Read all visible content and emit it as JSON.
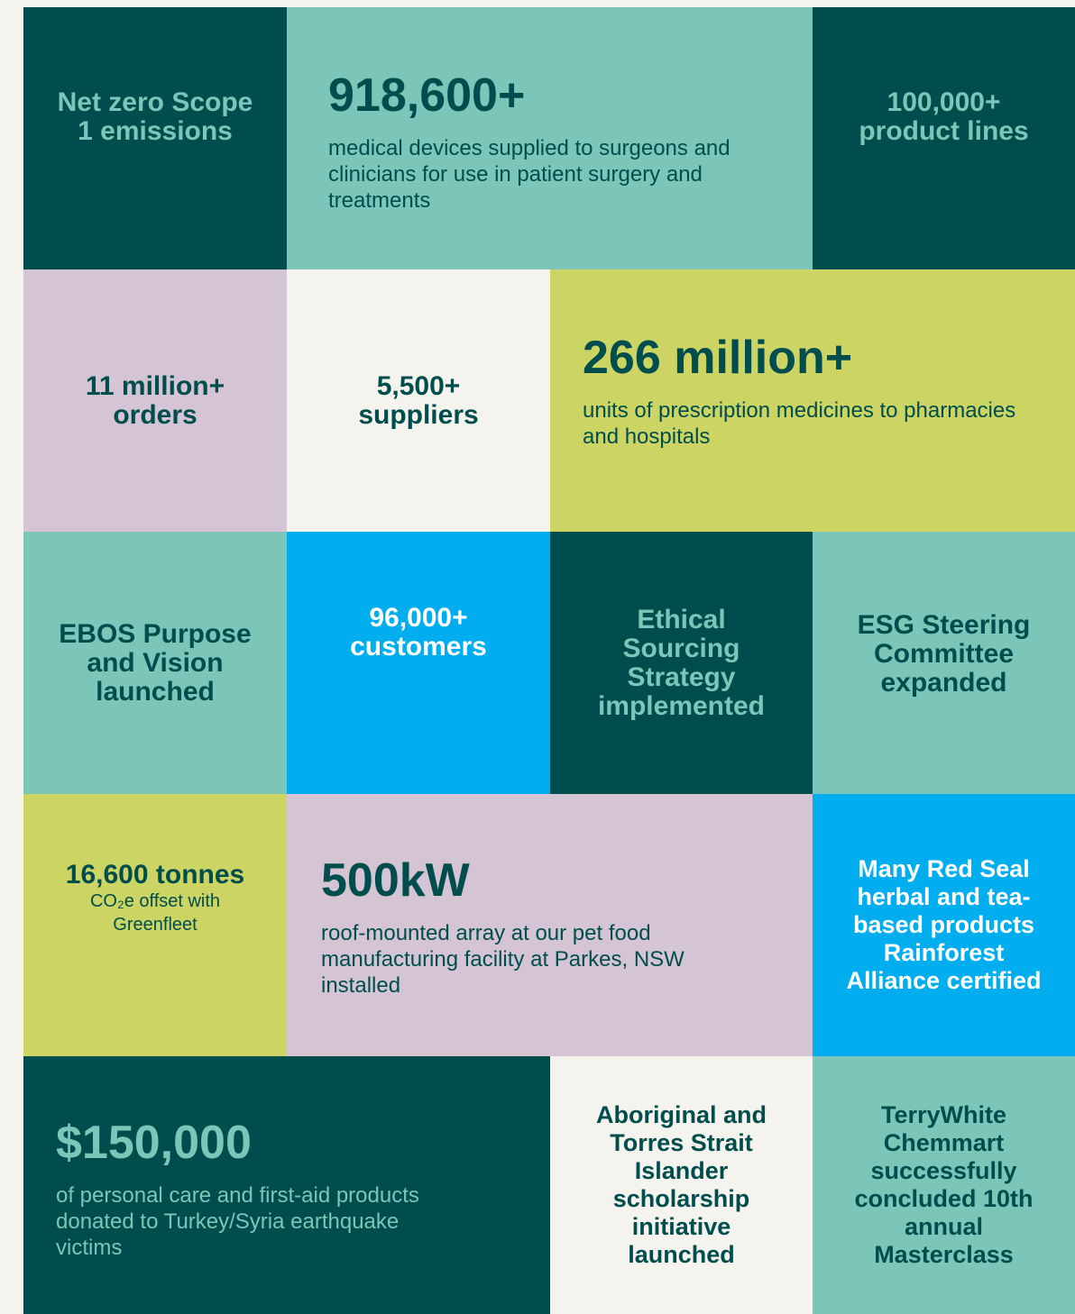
{
  "cells": [
    {
      "heading": "Net zero Scope 1 emissions"
    },
    {
      "heading": "918,600+",
      "description": "medical devices supplied to surgeons and clinicians for use in patient surgery and treatments"
    },
    {
      "heading": "100,000+ product lines"
    },
    {
      "heading": "11 million+ orders"
    },
    {
      "heading": "5,500+ suppliers"
    },
    {
      "heading": "266 million+",
      "description": "units of prescription medicines to pharmacies and hospitals"
    },
    {
      "heading": "EBOS Purpose and Vision launched"
    },
    {
      "heading": "96,000+ customers"
    },
    {
      "heading": "Ethical Sourcing Strategy implemented"
    },
    {
      "heading": "ESG Steering Committee expanded"
    },
    {
      "heading": "16,600 tonnes",
      "description": "CO₂e offset with Greenfleet"
    },
    {
      "heading": "500kW",
      "description": "roof-mounted array at our pet food manufacturing facility at Parkes, NSW installed"
    },
    {
      "heading": "Many Red Seal herbal and tea-based products Rainforest Alliance certified"
    },
    {
      "heading": "$150,000",
      "description": "of personal care and first-aid products donated to Turkey/Syria earthquake victims"
    },
    {
      "heading": "Aboriginal and Torres Strait Islander scholarship initiative launched"
    },
    {
      "heading": "TerryWhite Chemmart successfully concluded 10th annual Masterclass"
    }
  ]
}
